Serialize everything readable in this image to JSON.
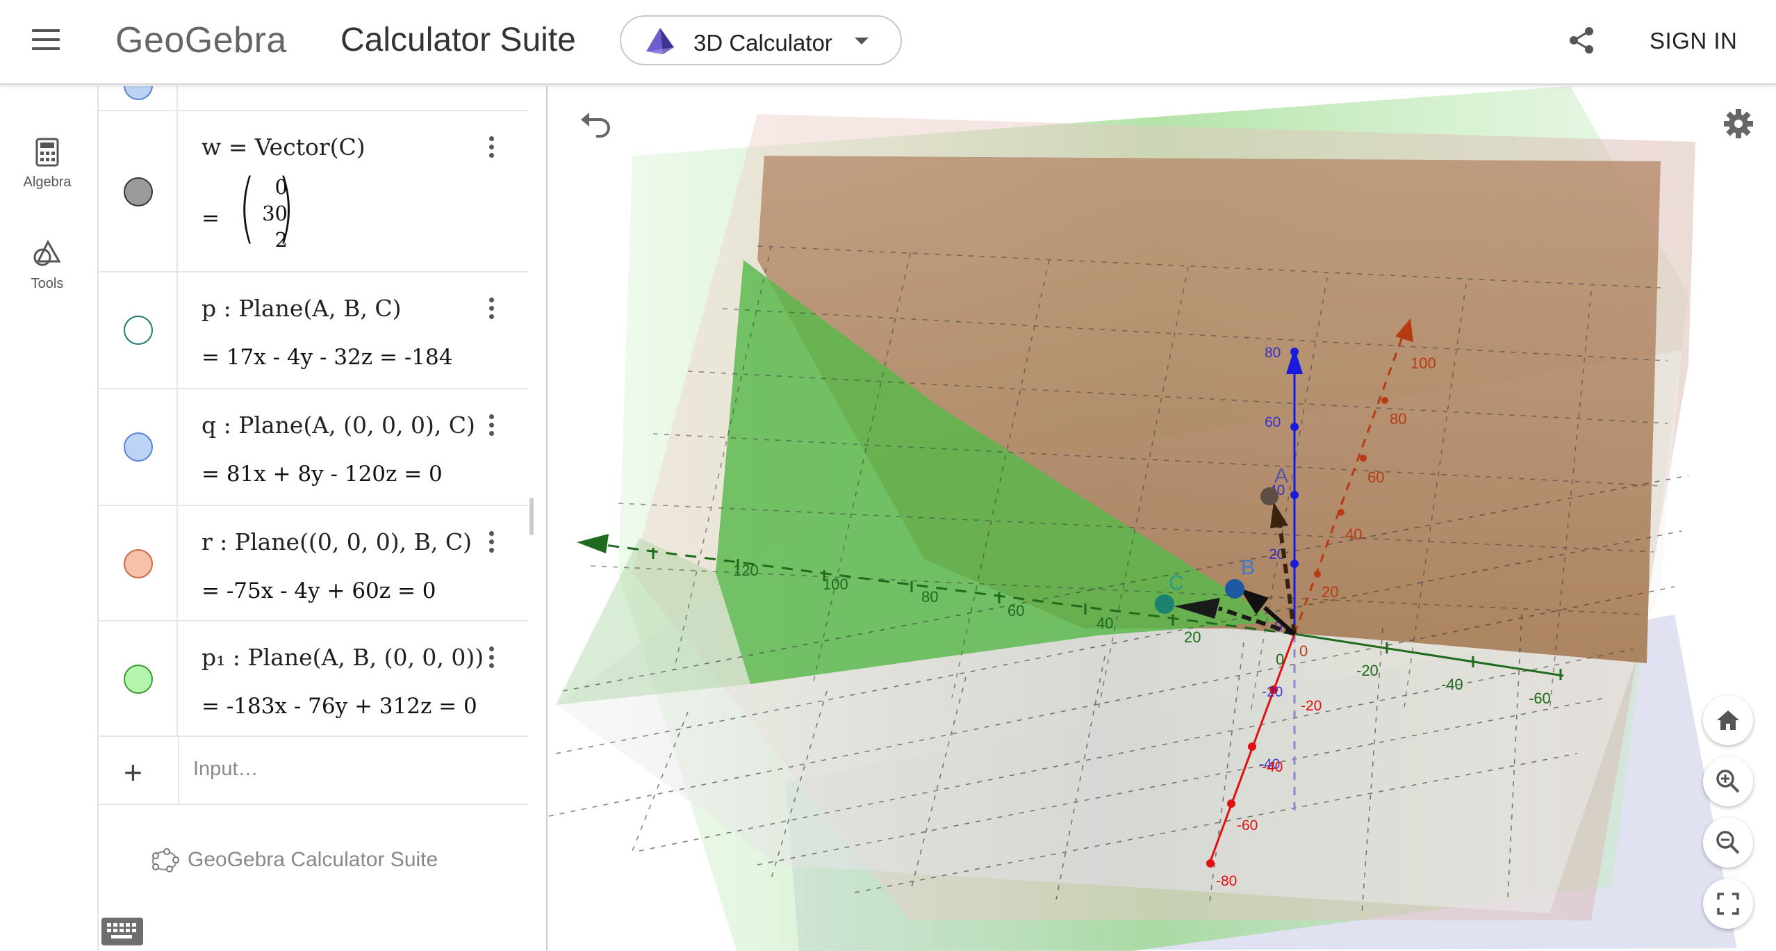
{
  "header": {
    "logo": "GeoGebra",
    "suite_title": "Calculator Suite",
    "app_selector": "3D Calculator",
    "sign_in": "SIGN IN",
    "icons": [
      "menu-icon",
      "pyramid-icon",
      "caret-down-icon",
      "share-icon"
    ]
  },
  "rail": {
    "items": [
      {
        "label": "Algebra",
        "icon": "calculator-icon"
      },
      {
        "label": "Tools",
        "icon": "tools-icon"
      }
    ]
  },
  "algebra": {
    "rows": [
      {
        "definition": "w  =  Vector(C)",
        "vector": [
          "0",
          "30",
          "2"
        ],
        "eq_sign": "=",
        "color": "#9a9a9a"
      },
      {
        "definition": "p : Plane(A, B, C)",
        "value": "=  17x - 4y - 32z = -184",
        "color": "#ffffff",
        "border": "#1f7a70"
      },
      {
        "definition": "q : Plane(A, (0, 0, 0), C)",
        "value": "=  81x + 8y - 120z = 0",
        "color": "#bcd3f5",
        "border": "#5a84d6"
      },
      {
        "definition": "r : Plane((0, 0, 0), B, C)",
        "value": "=  -75x - 4y + 60z = 0",
        "color": "#f7c0a8",
        "border": "#c96a45"
      },
      {
        "definition": "p₁ : Plane(A, B, (0, 0, 0))",
        "value": "=  -183x - 76y + 312z = 0",
        "color": "#b6f5ae",
        "border": "#3a9a33"
      }
    ],
    "input_placeholder": "Input…",
    "footer": "GeoGebra Calculator Suite"
  },
  "graphics": {
    "points": {
      "A": "A",
      "B": "B",
      "C": "C"
    },
    "axis_x_labels": [
      "0",
      "20",
      "40",
      "60",
      "80",
      "100"
    ],
    "axis_y_labels": [
      "120",
      "100",
      "80",
      "60",
      "40",
      "20",
      "0",
      "-20",
      "-40",
      "-60"
    ],
    "axis_z_labels": [
      "0",
      "20",
      "40",
      "60",
      "80",
      "-20",
      "-40"
    ],
    "axis_red_labels": [
      "-20",
      "-40",
      "-60",
      "-80"
    ],
    "origin_label": "0",
    "colors": {
      "x_axis": "#b83a12",
      "y_axis": "#1e6b1e",
      "z_axis": "#1a1adc",
      "red_axis": "#e01010",
      "plane_r": "#b06d45",
      "plane_p1": "#5cbf47"
    },
    "icons": [
      "undo-icon",
      "settings-icon",
      "home-icon",
      "zoom-in-icon",
      "zoom-out-icon",
      "fullscreen-icon",
      "keyboard-icon"
    ]
  }
}
